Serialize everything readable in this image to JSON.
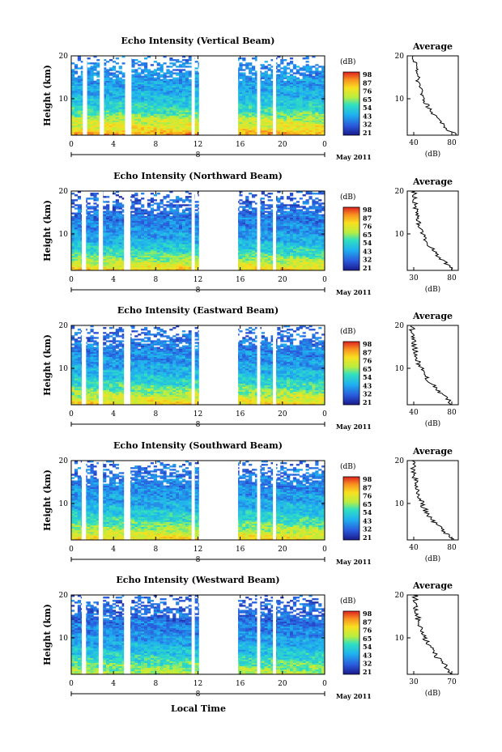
{
  "figure": {
    "xlabel": "Local Time",
    "date_label": "May 2011",
    "colorbar_unit": "(dB)",
    "colorbar_ticks": [
      "98",
      "87",
      "76",
      "65",
      "54",
      "43",
      "32",
      "21"
    ],
    "x_ticks": [
      "0",
      "4",
      "8",
      "12",
      "16",
      "20",
      "0"
    ],
    "date_tick": "8",
    "y_ticks": [
      "20",
      "10"
    ],
    "ylabel": "Height (km)",
    "avg_title": "Average",
    "avg_xlabel": "(dB)"
  },
  "chart_data": [
    {
      "type": "heatmap",
      "title": "Echo Intensity (Vertical Beam)",
      "x_range": [
        0,
        24
      ],
      "y_range": [
        1.5,
        20
      ],
      "clim": [
        21,
        98
      ],
      "gaps_hours": [
        [
          1.1,
          1.5
        ],
        [
          2.7,
          3.1
        ],
        [
          5.1,
          5.7
        ],
        [
          11.4,
          11.7
        ],
        [
          12.1,
          15.8
        ],
        [
          17.6,
          17.9
        ],
        [
          19.1,
          19.4
        ]
      ],
      "profile_dB": {
        "height_km": [
          1.5,
          3,
          5,
          7,
          9,
          11,
          13,
          15,
          17,
          19
        ],
        "avg_dB": [
          88,
          76,
          70,
          58,
          52,
          47,
          44,
          42,
          40,
          38
        ]
      },
      "avg_plot": {
        "x_ticks": [
          "40",
          "80"
        ],
        "xlim": [
          30,
          90
        ]
      }
    },
    {
      "type": "heatmap",
      "title": "Echo Intensity (Northward Beam)",
      "x_range": [
        0,
        24
      ],
      "y_range": [
        1.5,
        20
      ],
      "clim": [
        21,
        98
      ],
      "gaps_hours": [
        [
          1.0,
          1.4
        ],
        [
          2.6,
          3.0
        ],
        [
          5.0,
          5.6
        ],
        [
          11.4,
          11.7
        ],
        [
          12.1,
          15.8
        ],
        [
          17.6,
          17.9
        ],
        [
          19.1,
          19.4
        ]
      ],
      "profile_dB": {
        "height_km": [
          1.5,
          3,
          5,
          7,
          9,
          11,
          13,
          15,
          17,
          19
        ],
        "avg_dB": [
          80,
          72,
          60,
          52,
          45,
          41,
          38,
          36,
          34,
          33
        ]
      },
      "avg_plot": {
        "x_ticks": [
          "30",
          "80"
        ],
        "xlim": [
          25,
          85
        ]
      }
    },
    {
      "type": "heatmap",
      "title": "Echo Intensity (Eastward Beam)",
      "x_range": [
        0,
        24
      ],
      "y_range": [
        1.5,
        20
      ],
      "clim": [
        21,
        98
      ],
      "gaps_hours": [
        [
          1.0,
          1.4
        ],
        [
          2.6,
          3.0
        ],
        [
          5.0,
          5.6
        ],
        [
          11.4,
          11.7
        ],
        [
          12.1,
          15.8
        ],
        [
          17.6,
          17.9
        ],
        [
          19.1,
          19.4
        ]
      ],
      "profile_dB": {
        "height_km": [
          1.5,
          3,
          5,
          7,
          9,
          11,
          13,
          15,
          17,
          19
        ],
        "avg_dB": [
          80,
          72,
          62,
          54,
          48,
          43,
          40,
          38,
          36,
          35
        ]
      },
      "avg_plot": {
        "x_ticks": [
          "40",
          "80"
        ],
        "xlim": [
          30,
          85
        ]
      }
    },
    {
      "type": "heatmap",
      "title": "Echo Intensity (Southward Beam)",
      "x_range": [
        0,
        24
      ],
      "y_range": [
        1.5,
        20
      ],
      "clim": [
        21,
        98
      ],
      "gaps_hours": [
        [
          1.0,
          1.4
        ],
        [
          2.6,
          3.0
        ],
        [
          5.0,
          5.6
        ],
        [
          11.4,
          11.7
        ],
        [
          12.1,
          15.8
        ],
        [
          17.6,
          17.9
        ],
        [
          19.1,
          19.4
        ]
      ],
      "profile_dB": {
        "height_km": [
          1.5,
          3,
          5,
          7,
          9,
          11,
          13,
          15,
          17,
          19
        ],
        "avg_dB": [
          80,
          72,
          62,
          54,
          48,
          44,
          41,
          39,
          37,
          36
        ]
      },
      "avg_plot": {
        "x_ticks": [
          "40",
          "80"
        ],
        "xlim": [
          30,
          85
        ]
      }
    },
    {
      "type": "heatmap",
      "title": "Echo Intensity (Westward Beam)",
      "x_range": [
        0,
        24
      ],
      "y_range": [
        1.5,
        20
      ],
      "clim": [
        21,
        98
      ],
      "gaps_hours": [
        [
          1.0,
          1.4
        ],
        [
          2.6,
          3.0
        ],
        [
          5.0,
          5.6
        ],
        [
          11.4,
          11.7
        ],
        [
          12.1,
          15.8
        ],
        [
          17.6,
          17.9
        ],
        [
          19.1,
          19.4
        ]
      ],
      "profile_dB": {
        "height_km": [
          1.5,
          3,
          5,
          7,
          9,
          11,
          13,
          15,
          17,
          19
        ],
        "avg_dB": [
          68,
          64,
          56,
          50,
          44,
          40,
          37,
          35,
          34,
          33
        ]
      },
      "avg_plot": {
        "x_ticks": [
          "30",
          "70"
        ],
        "xlim": [
          25,
          75
        ]
      }
    }
  ]
}
